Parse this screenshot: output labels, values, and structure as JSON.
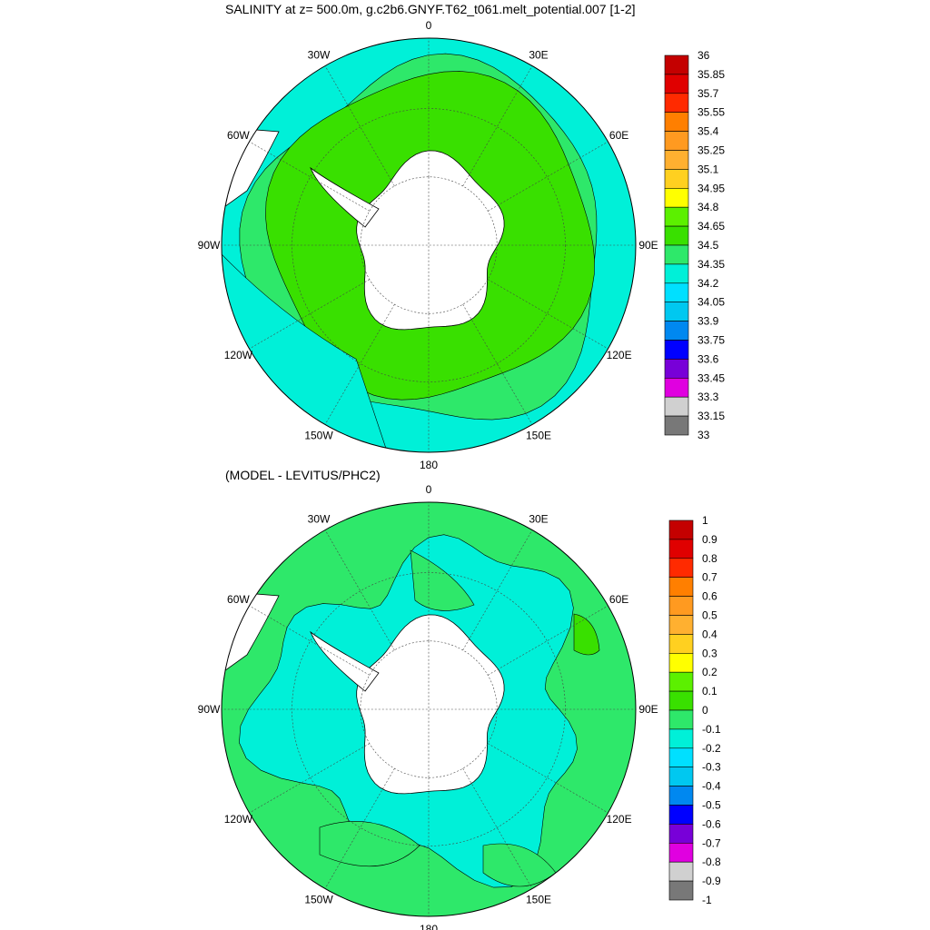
{
  "titles": {
    "top": "SALINITY at z= 500.0m, g.c2b6.GNYF.T62_t061.melt_potential.007 [1-2]",
    "bottom": "(MODEL - LEVITUS/PHC2)"
  },
  "longitude_labels": [
    "0",
    "30E",
    "60E",
    "90E",
    "120E",
    "150E",
    "180",
    "150W",
    "120W",
    "90W",
    "60W",
    "30W"
  ],
  "colors": {
    "land": "#ffffff",
    "coast": "#000000",
    "grid": "#444444"
  },
  "colorbar_top": {
    "labels": [
      "36",
      "35.85",
      "35.7",
      "35.55",
      "35.4",
      "35.25",
      "35.1",
      "34.95",
      "34.8",
      "34.65",
      "34.5",
      "34.35",
      "34.2",
      "34.05",
      "33.9",
      "33.75",
      "33.6",
      "33.45",
      "33.3",
      "33.15",
      "33"
    ],
    "colors": [
      "#c40000",
      "#e00000",
      "#ff2a00",
      "#ff7f00",
      "#ff9a20",
      "#ffb030",
      "#ffd020",
      "#ffff00",
      "#5cf000",
      "#39e000",
      "#2ee86a",
      "#00f0d8",
      "#00e0ff",
      "#00c8f0",
      "#0088f0",
      "#0000ff",
      "#7800d8",
      "#e000e0",
      "#d0d0d0",
      "#787878"
    ]
  },
  "colorbar_bottom": {
    "labels": [
      "1",
      "0.9",
      "0.8",
      "0.7",
      "0.6",
      "0.5",
      "0.4",
      "0.3",
      "0.2",
      "0.1",
      "0",
      "-0.1",
      "-0.2",
      "-0.3",
      "-0.4",
      "-0.5",
      "-0.6",
      "-0.7",
      "-0.8",
      "-0.9",
      "-1"
    ],
    "colors": [
      "#c40000",
      "#e00000",
      "#ff2a00",
      "#ff7f00",
      "#ff9a20",
      "#ffb030",
      "#ffd020",
      "#ffff00",
      "#5cf000",
      "#39e000",
      "#2ee86a",
      "#00f0d8",
      "#00e0ff",
      "#00c8f0",
      "#0088f0",
      "#0000ff",
      "#7800d8",
      "#e000e0",
      "#d0d0d0",
      "#787878"
    ]
  },
  "maps": {
    "top": {
      "outer_color": "#00f0d8",
      "mid_color": "#2ee86a",
      "inner_color": "#39e000",
      "accent_color": "#ffff00"
    },
    "bottom": {
      "outer_color": "#2ee86a",
      "mid_color": "#00f0d8",
      "inner_color": "#00f0d8",
      "accent_color": "#39e000"
    }
  }
}
